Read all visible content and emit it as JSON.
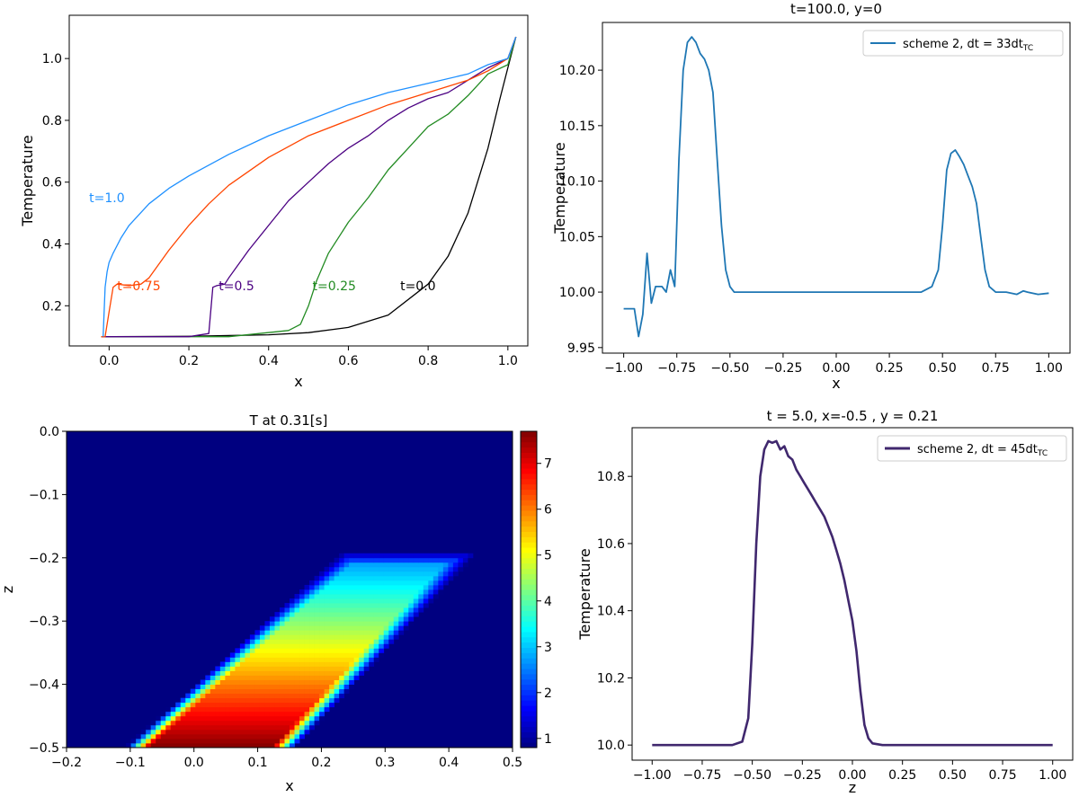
{
  "chart_data": [
    {
      "id": "p1",
      "type": "line",
      "title": "",
      "xlabel": "x",
      "ylabel": "Temperature",
      "xlim": [
        -0.1,
        1.05
      ],
      "ylim": [
        0.07,
        1.14
      ],
      "xticks": [
        0.0,
        0.2,
        0.4,
        0.6,
        0.8,
        1.0
      ],
      "yticks": [
        0.2,
        0.4,
        0.6,
        0.8,
        1.0
      ],
      "grid": false,
      "series": [
        {
          "name": "t=0.0",
          "color": "#000000",
          "label_at": [
            0.73,
            0.25
          ],
          "x": [
            -0.02,
            0.0,
            0.2,
            0.4,
            0.5,
            0.6,
            0.7,
            0.8,
            0.85,
            0.9,
            0.95,
            0.98,
            1.0,
            1.02
          ],
          "y": [
            0.1,
            0.1,
            0.101,
            0.106,
            0.113,
            0.13,
            0.17,
            0.27,
            0.36,
            0.5,
            0.71,
            0.87,
            0.97,
            1.07
          ]
        },
        {
          "name": "t=0.25",
          "color": "#228b22",
          "label_at": [
            0.51,
            0.25
          ],
          "x": [
            -0.02,
            0.3,
            0.45,
            0.48,
            0.5,
            0.52,
            0.55,
            0.6,
            0.65,
            0.7,
            0.75,
            0.8,
            0.85,
            0.9,
            0.95,
            1.0,
            1.02
          ],
          "y": [
            0.1,
            0.1,
            0.12,
            0.14,
            0.2,
            0.28,
            0.37,
            0.47,
            0.55,
            0.64,
            0.71,
            0.78,
            0.82,
            0.88,
            0.95,
            0.98,
            1.07
          ]
        },
        {
          "name": "t=0.5",
          "color": "#4b0082",
          "label_at": [
            0.275,
            0.25
          ],
          "x": [
            -0.02,
            0.2,
            0.25,
            0.26,
            0.27,
            0.29,
            0.3,
            0.35,
            0.4,
            0.45,
            0.5,
            0.55,
            0.6,
            0.65,
            0.7,
            0.75,
            0.8,
            0.85,
            0.9,
            0.95,
            1.0,
            1.02
          ],
          "y": [
            0.1,
            0.1,
            0.11,
            0.26,
            0.265,
            0.27,
            0.29,
            0.38,
            0.46,
            0.54,
            0.6,
            0.66,
            0.71,
            0.75,
            0.8,
            0.84,
            0.87,
            0.89,
            0.93,
            0.97,
            1.0,
            1.07
          ]
        },
        {
          "name": "t=0.75",
          "color": "#ff4500",
          "label_at": [
            0.02,
            0.25
          ],
          "x": [
            -0.02,
            -0.01,
            0.0,
            0.01,
            0.02,
            0.05,
            0.08,
            0.1,
            0.15,
            0.2,
            0.25,
            0.3,
            0.4,
            0.5,
            0.6,
            0.7,
            0.8,
            0.9,
            0.95,
            1.0,
            1.02
          ],
          "y": [
            0.1,
            0.1,
            0.18,
            0.26,
            0.27,
            0.265,
            0.27,
            0.29,
            0.38,
            0.46,
            0.53,
            0.59,
            0.68,
            0.75,
            0.8,
            0.85,
            0.89,
            0.93,
            0.96,
            1.0,
            1.07
          ]
        },
        {
          "name": "t=1.0",
          "color": "#1e90ff",
          "label_at": [
            -0.05,
            0.535
          ],
          "x": [
            -0.015,
            -0.01,
            -0.005,
            0.0,
            0.01,
            0.03,
            0.05,
            0.1,
            0.15,
            0.2,
            0.3,
            0.4,
            0.5,
            0.6,
            0.7,
            0.8,
            0.9,
            0.95,
            1.0,
            1.02
          ],
          "y": [
            0.1,
            0.26,
            0.31,
            0.34,
            0.37,
            0.42,
            0.46,
            0.53,
            0.58,
            0.62,
            0.69,
            0.75,
            0.8,
            0.85,
            0.89,
            0.92,
            0.95,
            0.98,
            1.0,
            1.07
          ]
        }
      ]
    },
    {
      "id": "p2",
      "type": "line",
      "title": "t=100.0, y=0",
      "xlabel": "x",
      "ylabel": "Temperature",
      "xlim": [
        -1.1,
        1.1
      ],
      "ylim": [
        9.945,
        10.243
      ],
      "xticks": [
        -1.0,
        -0.75,
        -0.5,
        -0.25,
        0.0,
        0.25,
        0.5,
        0.75,
        1.0
      ],
      "yticks": [
        9.95,
        10.0,
        10.05,
        10.1,
        10.15,
        10.2
      ],
      "legend": "top-right",
      "series": [
        {
          "name": "scheme 2, dt = 33dt",
          "name_sub": "TC",
          "color": "#1f77b4",
          "x": [
            -1.0,
            -0.95,
            -0.93,
            -0.91,
            -0.89,
            -0.87,
            -0.85,
            -0.82,
            -0.8,
            -0.78,
            -0.76,
            -0.74,
            -0.72,
            -0.7,
            -0.68,
            -0.66,
            -0.64,
            -0.62,
            -0.6,
            -0.58,
            -0.56,
            -0.54,
            -0.52,
            -0.5,
            -0.48,
            -0.45,
            -0.4,
            -0.3,
            -0.2,
            -0.1,
            0.0,
            0.1,
            0.2,
            0.3,
            0.4,
            0.45,
            0.48,
            0.5,
            0.52,
            0.54,
            0.56,
            0.58,
            0.6,
            0.62,
            0.64,
            0.66,
            0.68,
            0.7,
            0.72,
            0.75,
            0.8,
            0.85,
            0.88,
            0.9,
            0.95,
            1.0
          ],
          "y": [
            9.985,
            9.985,
            9.96,
            9.98,
            10.035,
            9.99,
            10.005,
            10.005,
            10.0,
            10.02,
            10.005,
            10.12,
            10.2,
            10.225,
            10.23,
            10.225,
            10.215,
            10.21,
            10.2,
            10.18,
            10.12,
            10.06,
            10.02,
            10.005,
            10.0,
            10.0,
            10.0,
            10.0,
            10.0,
            10.0,
            10.0,
            10.0,
            10.0,
            10.0,
            10.0,
            10.005,
            10.02,
            10.06,
            10.11,
            10.125,
            10.128,
            10.122,
            10.115,
            10.105,
            10.095,
            10.08,
            10.05,
            10.02,
            10.005,
            10.0,
            10.0,
            9.998,
            10.001,
            10.0,
            9.998,
            9.999
          ]
        }
      ]
    },
    {
      "id": "p3",
      "type": "heatmap",
      "title": "T at 0.31[s]",
      "xlabel": "x",
      "ylabel": "z",
      "xlim": [
        -0.2,
        0.5
      ],
      "ylim": [
        -0.5,
        0.0
      ],
      "xticks": [
        -0.2,
        -0.1,
        0.0,
        0.1,
        0.2,
        0.3,
        0.4,
        0.5
      ],
      "yticks": [
        0.0,
        -0.1,
        -0.2,
        -0.3,
        -0.4,
        -0.5
      ],
      "colorbar": {
        "range": [
          0.8,
          7.7
        ],
        "ticks": [
          1,
          2,
          3,
          4,
          5,
          6,
          7
        ],
        "colormap": "jet"
      },
      "band": {
        "left_bottom_x": -0.09,
        "left_top_x": 0.24,
        "right_bottom_x": 0.14,
        "right_top_x": 0.42,
        "top_z": -0.2,
        "bottom_z": -0.5,
        "t_top": 2.6,
        "t_bottom": 7.7,
        "background": 0.8
      }
    },
    {
      "id": "p4",
      "type": "line",
      "title": "t = 5.0, x=-0.5 , y = 0.21",
      "xlabel": "z",
      "ylabel": "Temperature",
      "xlim": [
        -1.1,
        1.1
      ],
      "ylim": [
        9.955,
        10.945
      ],
      "xticks": [
        -1.0,
        -0.75,
        -0.5,
        -0.25,
        0.0,
        0.25,
        0.5,
        0.75,
        1.0
      ],
      "yticks": [
        10.0,
        10.2,
        10.4,
        10.6,
        10.8
      ],
      "legend": "top-right",
      "series": [
        {
          "name": "scheme 2, dt = 45dt",
          "name_sub": "TC",
          "color": "#40286e",
          "x": [
            -1.0,
            -0.6,
            -0.55,
            -0.52,
            -0.5,
            -0.48,
            -0.46,
            -0.44,
            -0.42,
            -0.4,
            -0.38,
            -0.36,
            -0.34,
            -0.32,
            -0.3,
            -0.28,
            -0.26,
            -0.24,
            -0.22,
            -0.2,
            -0.18,
            -0.16,
            -0.14,
            -0.12,
            -0.1,
            -0.08,
            -0.06,
            -0.04,
            -0.02,
            0.0,
            0.02,
            0.04,
            0.06,
            0.08,
            0.1,
            0.15,
            0.2,
            0.3,
            1.0
          ],
          "y": [
            10.0,
            10.0,
            10.01,
            10.08,
            10.3,
            10.6,
            10.8,
            10.88,
            10.905,
            10.9,
            10.905,
            10.88,
            10.89,
            10.86,
            10.85,
            10.82,
            10.8,
            10.78,
            10.76,
            10.74,
            10.72,
            10.7,
            10.68,
            10.65,
            10.62,
            10.58,
            10.54,
            10.49,
            10.43,
            10.37,
            10.28,
            10.16,
            10.06,
            10.02,
            10.005,
            10.0,
            10.0,
            10.0,
            10.0
          ]
        }
      ]
    }
  ]
}
